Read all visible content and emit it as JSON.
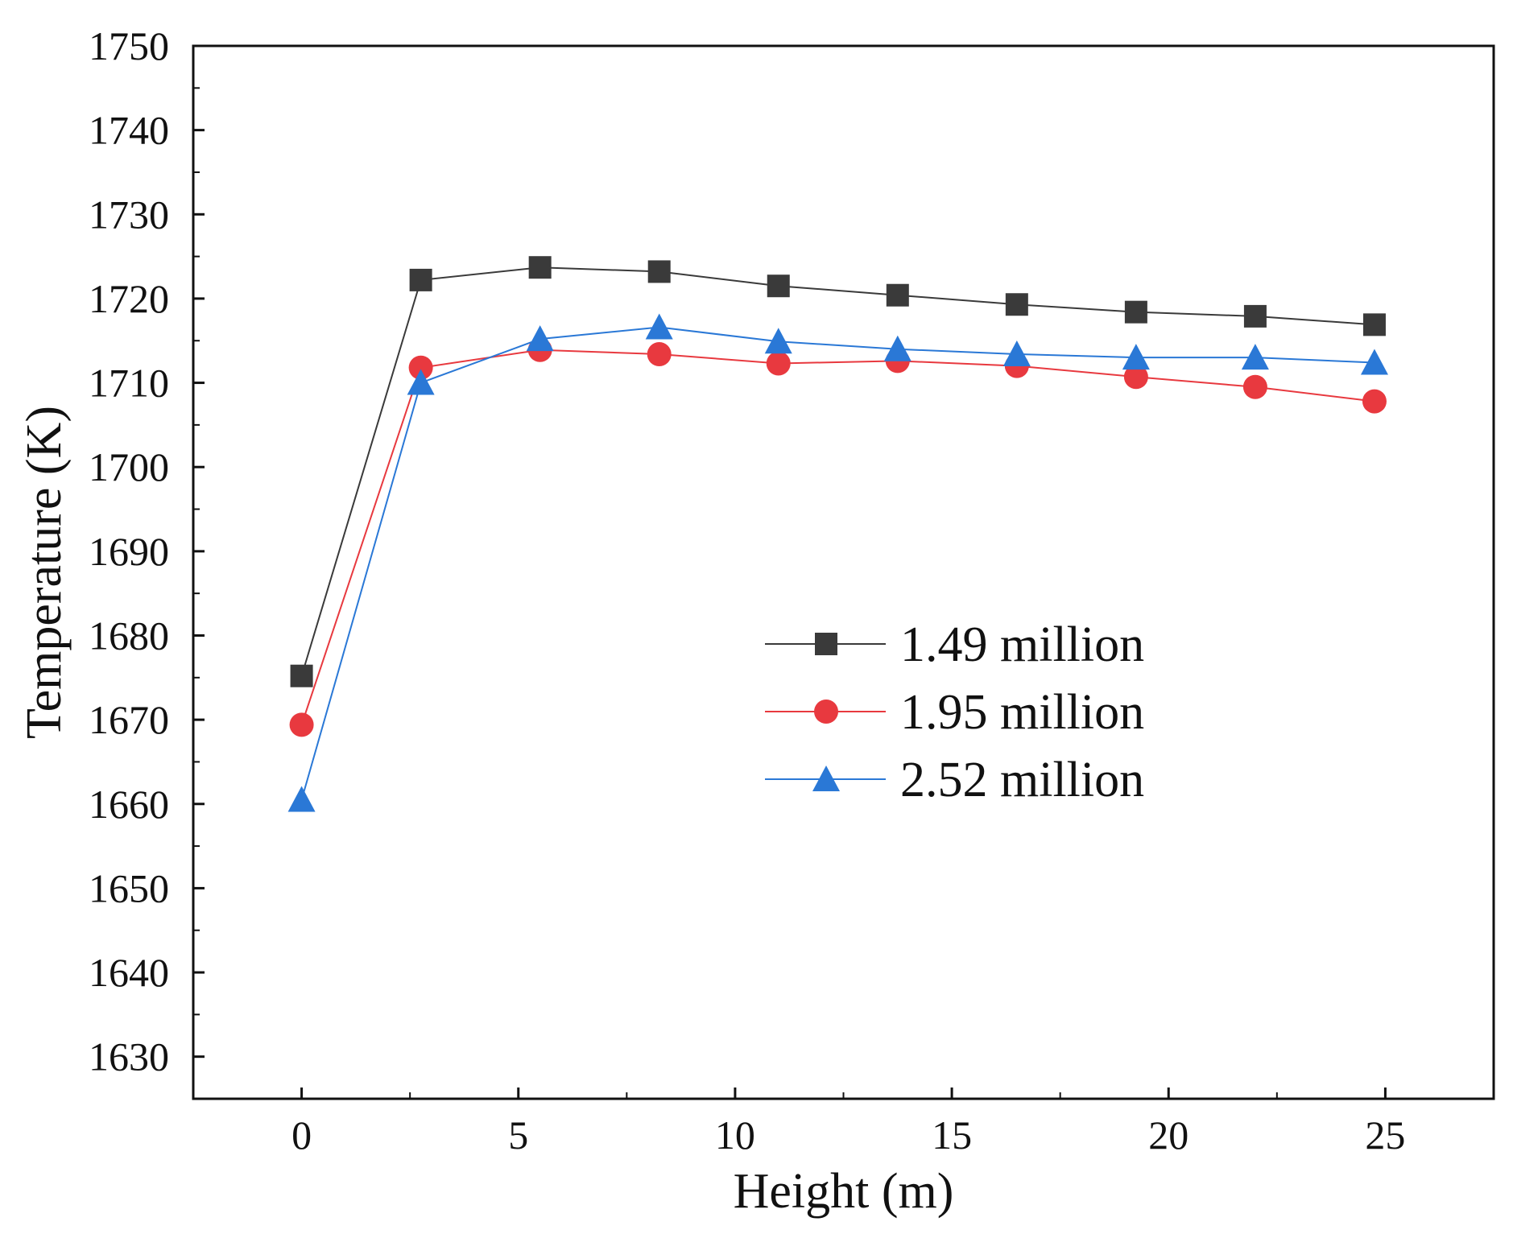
{
  "chart_data": {
    "type": "line",
    "xlabel": "Height (m)",
    "ylabel": "Temperature (K)",
    "xlim": [
      -2.5,
      27.5
    ],
    "ylim": [
      1625,
      1750
    ],
    "xticks": [
      0,
      5,
      10,
      15,
      20,
      25
    ],
    "xtick_labels": [
      "0",
      "5",
      "10",
      "15",
      "20",
      "25"
    ],
    "yticks": [
      1630,
      1640,
      1650,
      1660,
      1670,
      1680,
      1690,
      1700,
      1710,
      1720,
      1730,
      1740,
      1750
    ],
    "ytick_labels": [
      "1630",
      "1640",
      "1650",
      "1660",
      "1670",
      "1680",
      "1690",
      "1700",
      "1710",
      "1720",
      "1730",
      "1740",
      "1750"
    ],
    "grid": false,
    "legend_position": "center-right",
    "x": [
      0,
      2.75,
      5.5,
      8.25,
      11,
      13.75,
      16.5,
      19.25,
      22,
      24.75
    ],
    "series": [
      {
        "name": "1.49 million",
        "marker": "square",
        "color": "#3a3a3a",
        "values": [
          1675.2,
          1722.2,
          1723.7,
          1723.2,
          1721.5,
          1720.4,
          1719.3,
          1718.4,
          1717.9,
          1716.9
        ]
      },
      {
        "name": "1.95 million",
        "marker": "circle",
        "color": "#e8393f",
        "values": [
          1669.4,
          1711.8,
          1713.9,
          1713.4,
          1712.3,
          1712.6,
          1712.0,
          1710.7,
          1709.5,
          1707.8
        ]
      },
      {
        "name": "2.52 million",
        "marker": "triangle",
        "color": "#2a78d6",
        "values": [
          1660.5,
          1710.0,
          1715.2,
          1716.6,
          1714.9,
          1714.0,
          1713.4,
          1713.0,
          1713.0,
          1712.4
        ]
      }
    ]
  }
}
